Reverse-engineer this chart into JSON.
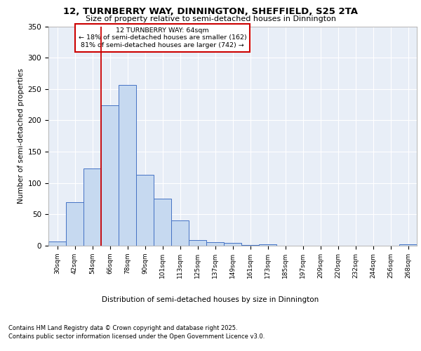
{
  "title1": "12, TURNBERRY WAY, DINNINGTON, SHEFFIELD, S25 2TA",
  "title2": "Size of property relative to semi-detached houses in Dinnington",
  "xlabel": "Distribution of semi-detached houses by size in Dinnington",
  "ylabel": "Number of semi-detached properties",
  "footnote1": "Contains HM Land Registry data © Crown copyright and database right 2025.",
  "footnote2": "Contains public sector information licensed under the Open Government Licence v3.0.",
  "annotation_title": "12 TURNBERRY WAY: 64sqm",
  "annotation_line1": "← 18% of semi-detached houses are smaller (162)",
  "annotation_line2": "81% of semi-detached houses are larger (742) →",
  "bar_labels": [
    "30sqm",
    "42sqm",
    "54sqm",
    "66sqm",
    "78sqm",
    "90sqm",
    "101sqm",
    "113sqm",
    "125sqm",
    "137sqm",
    "149sqm",
    "161sqm",
    "173sqm",
    "185sqm",
    "197sqm",
    "209sqm",
    "220sqm",
    "232sqm",
    "244sqm",
    "256sqm",
    "268sqm"
  ],
  "bar_values": [
    7,
    70,
    123,
    224,
    256,
    113,
    75,
    40,
    9,
    6,
    4,
    1,
    2,
    0,
    0,
    0,
    0,
    0,
    0,
    0,
    2
  ],
  "bar_color": "#c6d9f0",
  "bar_edge_color": "#4472c4",
  "vline_x_index": 2.5,
  "vline_color": "#cc0000",
  "annotation_box_color": "#cc0000",
  "background_color": "#e8eef7",
  "ylim": [
    0,
    350
  ],
  "yticks": [
    0,
    50,
    100,
    150,
    200,
    250,
    300,
    350
  ]
}
